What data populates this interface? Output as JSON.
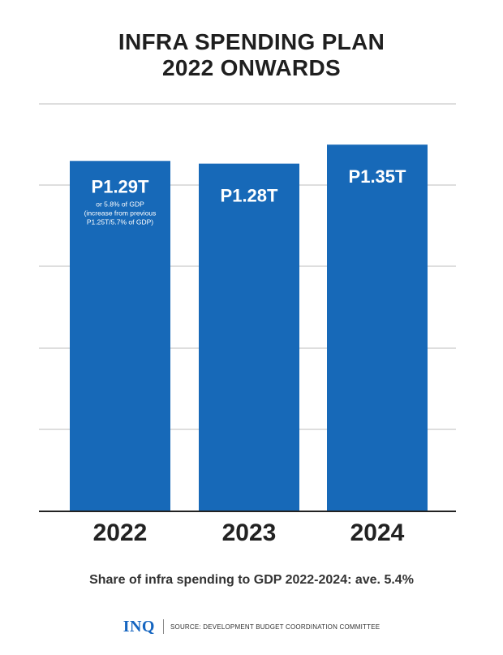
{
  "title": {
    "line1": "INFRA SPENDING PLAN",
    "line2": "2022 ONWARDS"
  },
  "colors": {
    "bar": "#1769B8",
    "grid": "#bdbdbd",
    "axis": "#222222",
    "label_text": "#ffffff",
    "logo": "#1565c0"
  },
  "chart_data": {
    "type": "bar",
    "title": "INFRA SPENDING PLAN 2022 ONWARDS",
    "categories": [
      "2022",
      "2023",
      "2024"
    ],
    "values": [
      1.29,
      1.28,
      1.35
    ],
    "unit": "trillion pesos",
    "ylim": [
      0,
      1.5
    ],
    "grid": true,
    "data_labels": [
      {
        "main": "P1.29T",
        "sub": [
          "or 5.8% of GDP",
          "(increase from previous",
          "P1.25T/5.7% of GDP)"
        ]
      },
      {
        "main": "P1.28T",
        "sub": []
      },
      {
        "main": "P1.35T",
        "sub": []
      }
    ]
  },
  "subtitle": "Share of infra spending to GDP 2022-2024: ave. 5.4%",
  "footer": {
    "logo": "INQ",
    "source": "SOURCE: DEVELOPMENT BUDGET COORDINATION COMMITTEE"
  }
}
